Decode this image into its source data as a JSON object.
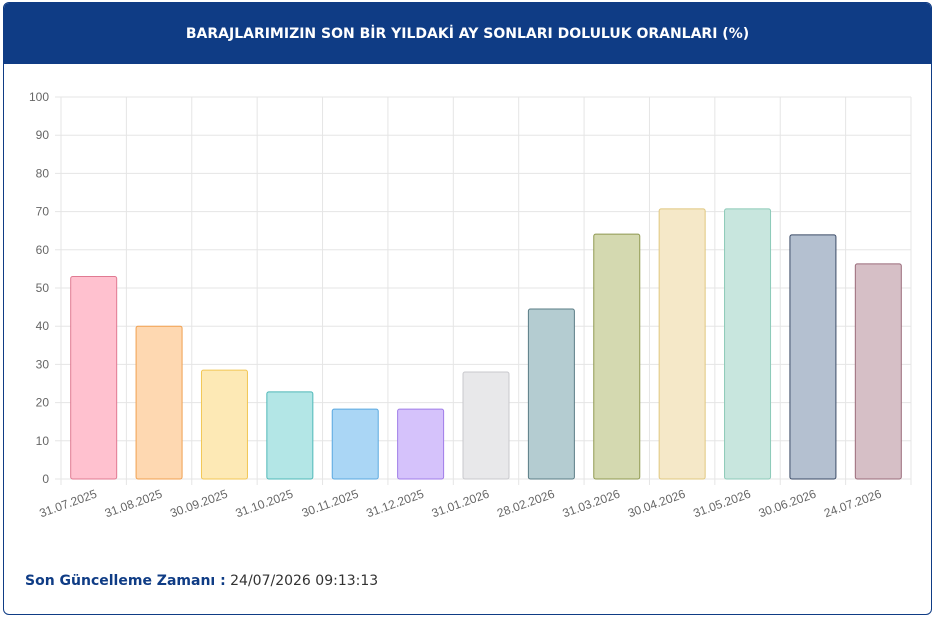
{
  "chart_data": {
    "type": "bar",
    "title": "BARAJLARIMIZIN SON BİR YILDAKİ AY SONLARI DOLULUK ORANLARI (%)",
    "categories": [
      "31.07.2025",
      "31.08.2025",
      "30.09.2025",
      "31.10.2025",
      "30.11.2025",
      "31.12.2025",
      "31.01.2026",
      "28.02.2026",
      "31.03.2026",
      "30.04.2026",
      "31.05.2026",
      "30.06.2026",
      "24.07.2026"
    ],
    "values": [
      53,
      40,
      28.5,
      22.8,
      18.3,
      18.3,
      28,
      44.5,
      64.1,
      70.7,
      70.7,
      63.9,
      56.3
    ],
    "colors": [
      "#ffc1cf",
      "#fed8b1",
      "#fde9b5",
      "#b3e6e6",
      "#aad6f5",
      "#d5c2fb",
      "#e8e8ea",
      "#b4ccd1",
      "#d4d9b0",
      "#f5e8c8",
      "#c8e6de",
      "#b4c0d0",
      "#d6bfc6"
    ],
    "border_colors": [
      "#e07a92",
      "#f0a050",
      "#f2c655",
      "#4fb8b8",
      "#5aa8e0",
      "#a07de8",
      "#c8c8cc",
      "#5a7c85",
      "#8f9950",
      "#e0c880",
      "#8ccab8",
      "#3a4a66",
      "#9a6b7a"
    ],
    "ylim": [
      0,
      100
    ],
    "yticks": [
      0,
      10,
      20,
      30,
      40,
      50,
      60,
      70,
      80,
      90,
      100
    ],
    "grid": true
  },
  "footer": {
    "label": "Son Güncelleme Zamanı :",
    "value": "24/07/2026 09:13:13"
  }
}
